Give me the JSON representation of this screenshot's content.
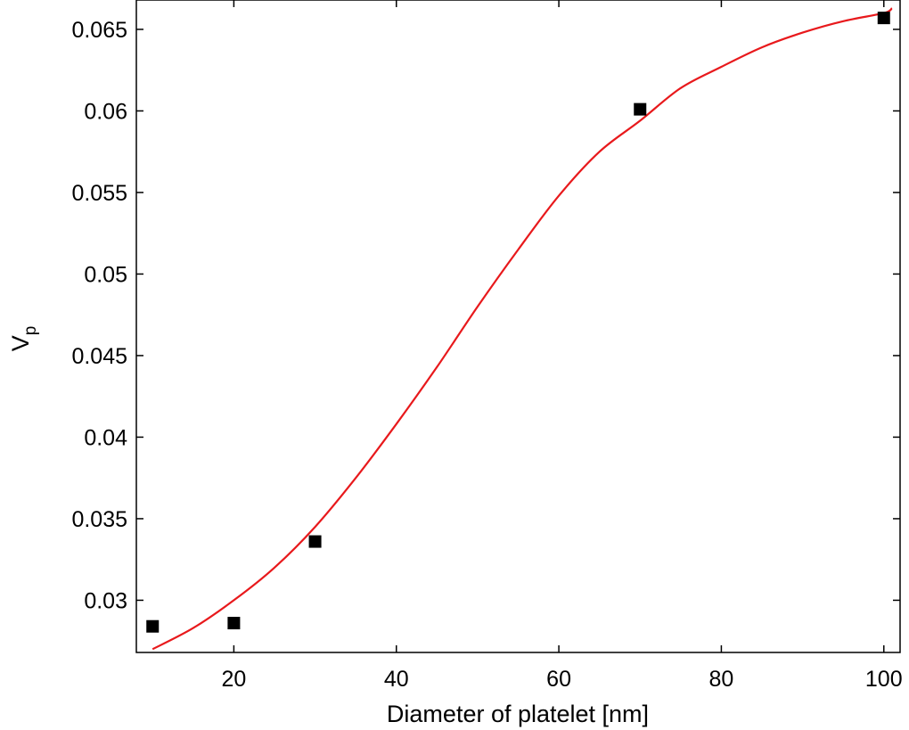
{
  "chart_data": {
    "type": "scatter",
    "title": "",
    "xlabel": "Diameter of platelet [nm]",
    "ylabel": "V",
    "ylabel_subscript": "p",
    "xlim": [
      8,
      102
    ],
    "ylim": [
      0.0268,
      0.0668
    ],
    "x_ticks": [
      20,
      40,
      60,
      80,
      100
    ],
    "x_tick_labels": [
      "20",
      "40",
      "60",
      "80",
      "100"
    ],
    "y_ticks": [
      0.03,
      0.035,
      0.04,
      0.045,
      0.05,
      0.055,
      0.06,
      0.065
    ],
    "y_tick_labels": [
      "0.03",
      "0.035",
      "0.04",
      "0.045",
      "0.05",
      "0.055",
      "0.06",
      "0.065"
    ],
    "grid": false,
    "series": [
      {
        "type": "scatter",
        "marker": "square",
        "color": "#000000",
        "x": [
          10,
          20,
          30,
          70,
          100
        ],
        "y": [
          0.0284,
          0.0286,
          0.0336,
          0.0601,
          0.0657
        ]
      },
      {
        "type": "line",
        "color": "#e8191c",
        "x": [
          10,
          15,
          20,
          25,
          30,
          35,
          40,
          45,
          50,
          55,
          60,
          65,
          70,
          75,
          80,
          85,
          90,
          95,
          100,
          101
        ],
        "y": [
          0.027,
          0.0283,
          0.03,
          0.032,
          0.0345,
          0.0375,
          0.0408,
          0.0443,
          0.048,
          0.0515,
          0.0548,
          0.0575,
          0.0594,
          0.0614,
          0.0627,
          0.0639,
          0.0648,
          0.0655,
          0.066,
          0.0663
        ]
      }
    ]
  }
}
